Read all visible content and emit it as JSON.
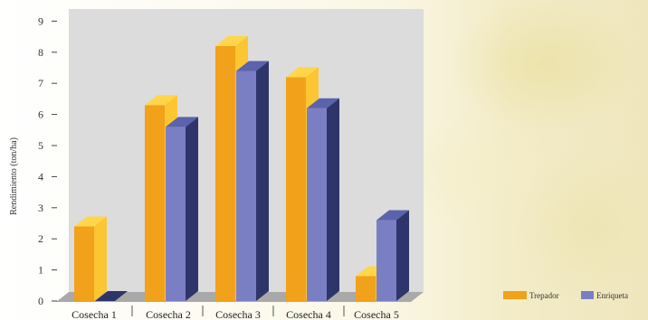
{
  "chart_data": {
    "type": "bar",
    "categories": [
      "Cosecha 1",
      "Cosecha 2",
      "Cosecha 3",
      "Cosecha 4",
      "Cosecha 5"
    ],
    "series": [
      {
        "name": "Trepador",
        "values": [
          2.4,
          6.3,
          8.2,
          7.2,
          0.8
        ]
      },
      {
        "name": "Enriqueta",
        "values": [
          0.0,
          5.6,
          7.4,
          6.2,
          2.6
        ]
      }
    ],
    "xlabel": "",
    "ylabel": "Rendimiento (ton/ha)",
    "ylim": [
      0,
      9
    ],
    "yticks": [
      0,
      1,
      2,
      3,
      4,
      5,
      6,
      7,
      8,
      9
    ],
    "grid": false,
    "legend_position": "bottom-right",
    "colors": {
      "Trepador": {
        "front": "#f1a11a",
        "top": "#ffd64a",
        "side": "#fcc632"
      },
      "Enriqueta": {
        "front": "#7a7fc4",
        "top": "#5a63ac",
        "side": "#2e356a"
      },
      "plot_back": "#dcdcdc",
      "plot_floor": "#a9a9a9"
    }
  }
}
